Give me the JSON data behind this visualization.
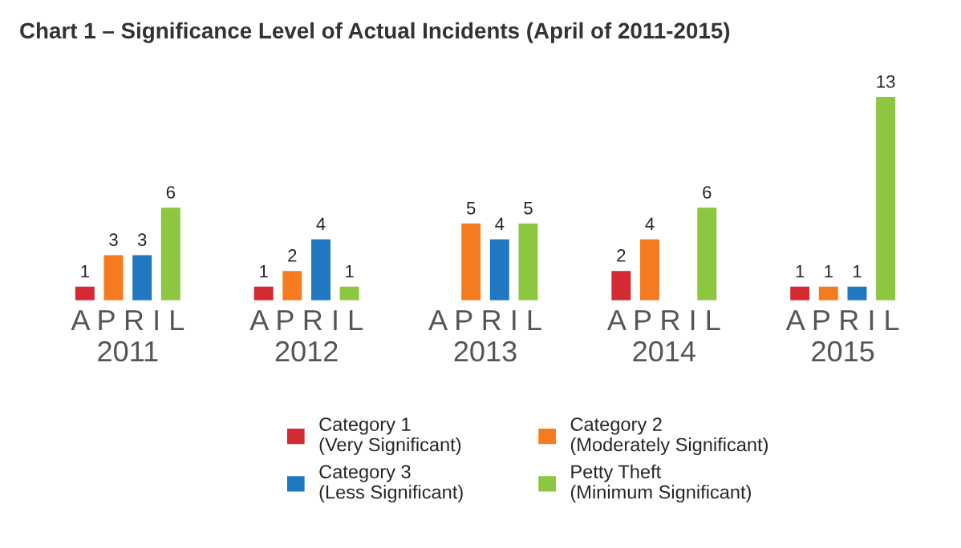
{
  "chart_data": {
    "type": "bar",
    "title": "Chart 1 – Significance Level of Actual Incidents (April of 2011-2015)",
    "categories": [
      "A P R I L\n2011",
      "A P R I L\n2012",
      "A P R I L\n2013",
      "A P R I L\n2014",
      "A P R I L\n2015"
    ],
    "series": [
      {
        "name": "Category 1\n(Very Significant)",
        "color": "#d42a34",
        "values": [
          1,
          1,
          null,
          2,
          1
        ]
      },
      {
        "name": "Category 2\n(Moderately Significant)",
        "color": "#f47b20",
        "values": [
          3,
          2,
          5,
          4,
          1
        ]
      },
      {
        "name": "Category 3\n(Less Significant)",
        "color": "#1f78c1",
        "values": [
          3,
          4,
          4,
          null,
          1
        ]
      },
      {
        "name": "Petty Theft\n(Minimum Significant)",
        "color": "#8dc63f",
        "values": [
          6,
          1,
          5,
          6,
          13
        ]
      }
    ],
    "data_labels": true,
    "legend": "bottom",
    "grid": false
  }
}
